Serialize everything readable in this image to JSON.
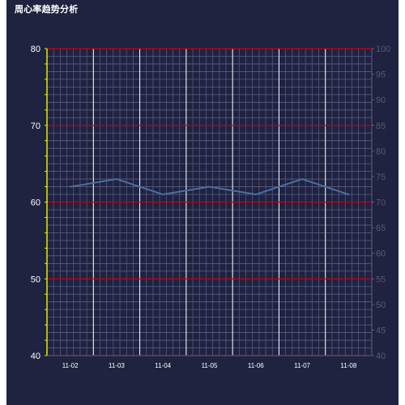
{
  "chart_data": {
    "type": "line",
    "title": "周心率趋势分析",
    "categories": [
      "11-02",
      "11-03",
      "11-04",
      "11-05",
      "11-06",
      "11-07",
      "11-08"
    ],
    "series": [
      {
        "values": [
          62,
          63,
          61,
          62,
          61,
          63,
          61
        ]
      }
    ],
    "ylim": [
      40,
      80
    ],
    "yticks": [
      40,
      50,
      60,
      70,
      80
    ],
    "ylim_right": [
      40,
      100
    ],
    "yticks_right": [
      40,
      45,
      50,
      55,
      60,
      65,
      70,
      75,
      80,
      85,
      90,
      95,
      100
    ],
    "grid": true,
    "colors": {
      "background": "#1f2340",
      "line": "#4a6fa5",
      "major_grid": "#c0001a",
      "minor_grid": "#5a5f8a",
      "category_grid": "#ffffff",
      "left_axis": "#e8e800",
      "right_axis": "#5a5f7a",
      "tick_text": "#ffffff",
      "right_tick_text": "#55596f"
    }
  }
}
